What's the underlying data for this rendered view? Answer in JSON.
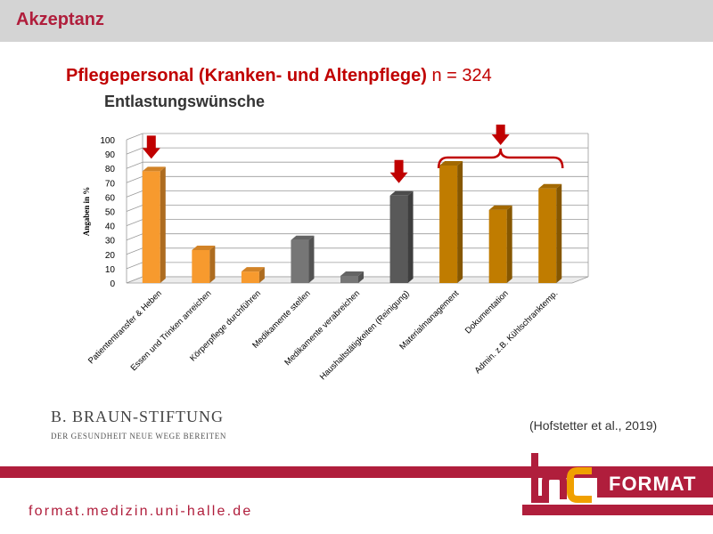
{
  "header": {
    "title": "Akzeptanz"
  },
  "slide": {
    "title": "Pflegepersonal (Kranken- und Altenpflege)",
    "n_label": "n = 324",
    "subtitle": "Entlastungswünsche"
  },
  "chart_data": {
    "type": "bar",
    "title": "",
    "xlabel": "",
    "ylabel": "Angaben in %",
    "ylim": [
      0,
      100
    ],
    "yticks": [
      0,
      10,
      20,
      30,
      40,
      50,
      60,
      70,
      80,
      90,
      100
    ],
    "grid": true,
    "categories": [
      "Patiententransfer & Heben",
      "Essen und Trinken anreichen",
      "Körperpflege durchführen",
      "Medikamente stellen",
      "Medikamente verabreichen",
      "Haushaltstätigkeiten (Reinigung)",
      "Materialmanagement",
      "Dokumentation",
      "Admin. z.B. Kühlschranktemp."
    ],
    "values": [
      78,
      23,
      8,
      30,
      5,
      61,
      82,
      51,
      66
    ],
    "colors": [
      "#f79a2e",
      "#f79a2e",
      "#f79a2e",
      "#767676",
      "#767676",
      "#595959",
      "#c07c00",
      "#c07c00",
      "#c07c00"
    ],
    "highlight_arrow_indices": [
      0,
      5
    ],
    "bracket_range": [
      6,
      8
    ],
    "arrow_color": "#c00000"
  },
  "branding": {
    "foundation_name": "B. BRAUN-STIFTUNG",
    "foundation_tagline": "DER GESUNDHEIT NEUE WEGE BEREITEN",
    "citation": "(Hofstetter et al., 2019)",
    "url": "format.medizin.uni-halle.de",
    "logo_text": "FORMAT",
    "brand_red": "#b01e3c",
    "brand_orange": "#f0a000"
  }
}
